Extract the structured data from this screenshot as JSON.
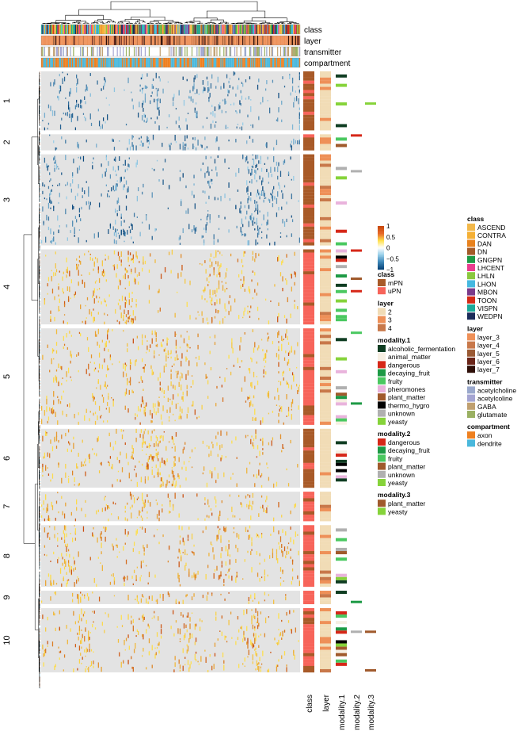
{
  "chart_data": {
    "type": "heatmap",
    "title": "",
    "value_scale": {
      "ticks": [
        "1",
        "0.5",
        "0",
        "−0.5",
        "−1"
      ]
    },
    "colors": {
      "background": "#e3e3e3",
      "positive_low": "#ffe04a",
      "positive_high": "#c94a0e",
      "negative_low": "#9ad0ea",
      "negative_high": "#08457a"
    },
    "column_annotations": [
      "class",
      "layer",
      "transmitter",
      "compartment"
    ],
    "row_annotations": [
      "class",
      "layer",
      "modality.1",
      "modality.2",
      "modality.3"
    ],
    "row_clusters": [
      {
        "label": "1",
        "rows": 22,
        "sign": "negative"
      },
      {
        "label": "2",
        "rows": 6,
        "sign": "negative"
      },
      {
        "label": "3",
        "rows": 34,
        "sign": "negative"
      },
      {
        "label": "4",
        "rows": 28,
        "sign": "positive"
      },
      {
        "label": "5",
        "rows": 36,
        "sign": "positive"
      },
      {
        "label": "6",
        "rows": 22,
        "sign": "positive"
      },
      {
        "label": "7",
        "rows": 11,
        "sign": "positive"
      },
      {
        "label": "8",
        "rows": 23,
        "sign": "positive"
      },
      {
        "label": "9",
        "rows": 5,
        "sign": "positive"
      },
      {
        "label": "10",
        "rows": 24,
        "sign": "positive"
      }
    ],
    "legends": {
      "row": [
        {
          "title": "class",
          "items": [
            {
              "label": "mPN",
              "color": "#a85a28"
            },
            {
              "label": "uPN",
              "color": "#f7645a"
            }
          ]
        },
        {
          "title": "layer",
          "items": [
            {
              "label": "2",
              "color": "#f1dcb6"
            },
            {
              "label": "3",
              "color": "#ee9058"
            },
            {
              "label": "4",
              "color": "#c8784a"
            }
          ]
        },
        {
          "title": "modality.1",
          "items": [
            {
              "label": "alcoholic_fermentation",
              "color": "#0f3d22"
            },
            {
              "label": "animal_matter",
              "color": "#f6efe2"
            },
            {
              "label": "dangerous",
              "color": "#d62718"
            },
            {
              "label": "decaying_fruit",
              "color": "#1d9a45"
            },
            {
              "label": "fruity",
              "color": "#4ac860"
            },
            {
              "label": "pheromones",
              "color": "#e9b3dc"
            },
            {
              "label": "plant_matter",
              "color": "#a05a2c"
            },
            {
              "label": "thermo_hygro",
              "color": "#000000"
            },
            {
              "label": "unknown",
              "color": "#b0b0b0"
            },
            {
              "label": "yeasty",
              "color": "#86d33a"
            }
          ]
        },
        {
          "title": "modality.2",
          "items": [
            {
              "label": "dangerous",
              "color": "#d62718"
            },
            {
              "label": "decaying_fruit",
              "color": "#1d9a45"
            },
            {
              "label": "fruity",
              "color": "#4ac860"
            },
            {
              "label": "plant_matter",
              "color": "#a05a2c"
            },
            {
              "label": "unknown",
              "color": "#b0b0b0"
            },
            {
              "label": "yeasty",
              "color": "#86d33a"
            }
          ]
        },
        {
          "title": "modality.3",
          "items": [
            {
              "label": "plant_matter",
              "color": "#a05a2c"
            },
            {
              "label": "yeasty",
              "color": "#86d33a"
            }
          ]
        }
      ],
      "column": [
        {
          "title": "class",
          "items": [
            {
              "label": "ASCEND",
              "color": "#f2b84a"
            },
            {
              "label": "CONTRA",
              "color": "#f5b035"
            },
            {
              "label": "DAN",
              "color": "#e8821e"
            },
            {
              "label": "DN",
              "color": "#a35a28"
            },
            {
              "label": "GNGPN",
              "color": "#1d9a45"
            },
            {
              "label": "LHCENT",
              "color": "#ea3d8f"
            },
            {
              "label": "LHLN",
              "color": "#8ac83e"
            },
            {
              "label": "LHON",
              "color": "#45b8e0"
            },
            {
              "label": "MBON",
              "color": "#7a3a8a"
            },
            {
              "label": "TOON",
              "color": "#d42a16"
            },
            {
              "label": "VISPN",
              "color": "#1aa99a"
            },
            {
              "label": "WEDPN",
              "color": "#1b2b5a"
            }
          ]
        },
        {
          "title": "layer",
          "items": [
            {
              "label": "layer_3",
              "color": "#ee9058"
            },
            {
              "label": "layer_4",
              "color": "#c8784a"
            },
            {
              "label": "layer_5",
              "color": "#9a5a34"
            },
            {
              "label": "layer_6",
              "color": "#6a2418"
            },
            {
              "label": "layer_7",
              "color": "#2e0f08"
            }
          ]
        },
        {
          "title": "transmitter",
          "items": [
            {
              "label": "acetylcholine",
              "color": "#9aa8cc"
            },
            {
              "label": "acetylcoline",
              "color": "#a5a5d2"
            },
            {
              "label": "GABA",
              "color": "#c0a070"
            },
            {
              "label": "glutamate",
              "color": "#9ab062"
            }
          ]
        },
        {
          "title": "compartment",
          "items": [
            {
              "label": "axon",
              "color": "#ee8020"
            },
            {
              "label": "dendrite",
              "color": "#4ab8dc"
            }
          ]
        }
      ]
    }
  }
}
